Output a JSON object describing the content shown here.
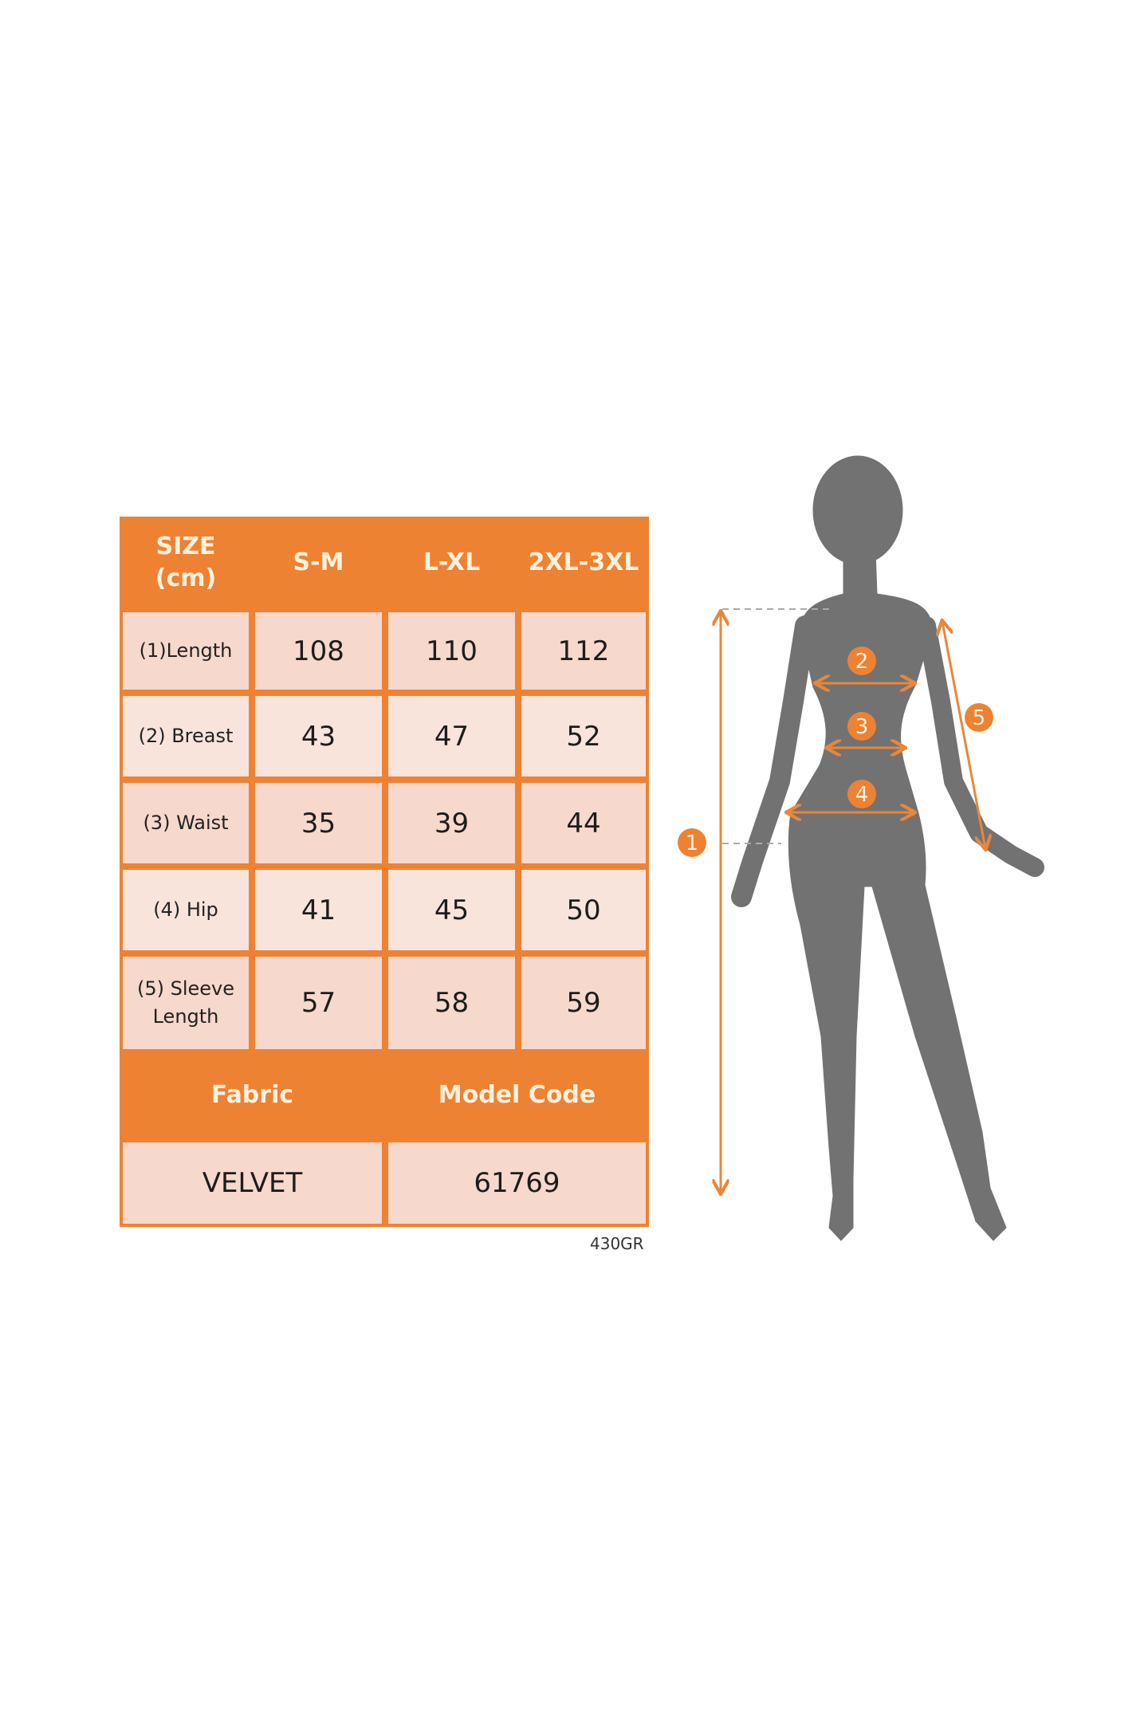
{
  "size_table": {
    "header": [
      "SIZE\n(cm)",
      "S-M",
      "L-XL",
      "2XL-3XL"
    ],
    "rows": [
      {
        "label": "(1)Length",
        "values": [
          "108",
          "110",
          "112"
        ]
      },
      {
        "label": "(2) Breast",
        "values": [
          "43",
          "47",
          "52"
        ]
      },
      {
        "label": "(3) Waist",
        "values": [
          "35",
          "39",
          "44"
        ]
      },
      {
        "label": "(4) Hip",
        "values": [
          "41",
          "45",
          "50"
        ]
      },
      {
        "label": "(5) Sleeve\nLength",
        "values": [
          "57",
          "58",
          "59"
        ]
      }
    ],
    "info_header": [
      "Fabric",
      "Model Code"
    ],
    "info_values": [
      "VELVET",
      "61769"
    ]
  },
  "footer_code": "430GR",
  "figure": {
    "markers": [
      "1",
      "2",
      "3",
      "4",
      "5"
    ]
  },
  "colors": {
    "accent": "#ee8233",
    "cell": "#f7d8cc",
    "silhouette": "#727272"
  }
}
